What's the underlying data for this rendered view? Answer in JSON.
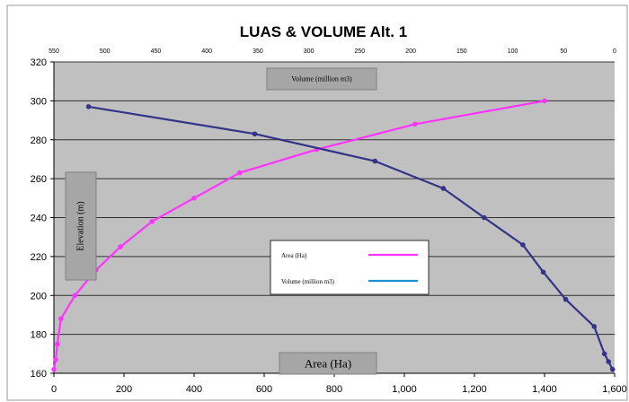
{
  "chart_data": {
    "type": "line",
    "title": "LUAS & VOLUME Alt. 1",
    "ylabel": "Elevation (m)",
    "ylim": [
      160,
      320
    ],
    "yticks": [
      "160",
      "180",
      "200",
      "220",
      "240",
      "260",
      "280",
      "300",
      "320"
    ],
    "grid": true,
    "legend_position": "center",
    "plot_background": "#c0c0c0",
    "axes": {
      "bottom": {
        "label": "Area (Ha)",
        "range": [
          0,
          1600
        ],
        "ticks": [
          "0",
          "200",
          "400",
          "600",
          "800",
          "1,000",
          "1,200",
          "1,400",
          "1,600"
        ]
      },
      "top": {
        "label": "Volume (million m3)",
        "range": [
          550,
          0
        ],
        "reversed": true,
        "ticks": [
          "550",
          "500",
          "450",
          "400",
          "350",
          "300",
          "250",
          "200",
          "150",
          "100",
          "50",
          "0"
        ]
      }
    },
    "series": [
      {
        "name": "Area (Ha)",
        "axis": "bottom",
        "color": "#ff33ff",
        "x": [
          0,
          5,
          10,
          20,
          60,
          120,
          190,
          280,
          400,
          530,
          750,
          1030,
          1400
        ],
        "y": [
          162,
          167,
          175,
          188,
          200,
          213,
          225,
          238,
          250,
          263,
          275,
          288,
          300
        ]
      },
      {
        "name": "Volume (million m3)",
        "axis": "top",
        "color": "#333388",
        "x": [
          516,
          353,
          235,
          168,
          128,
          90,
          70,
          48,
          20,
          10,
          6,
          2
        ],
        "y": [
          297,
          283,
          269,
          255,
          240,
          226,
          212,
          198,
          184,
          170,
          166,
          162
        ]
      }
    ]
  }
}
